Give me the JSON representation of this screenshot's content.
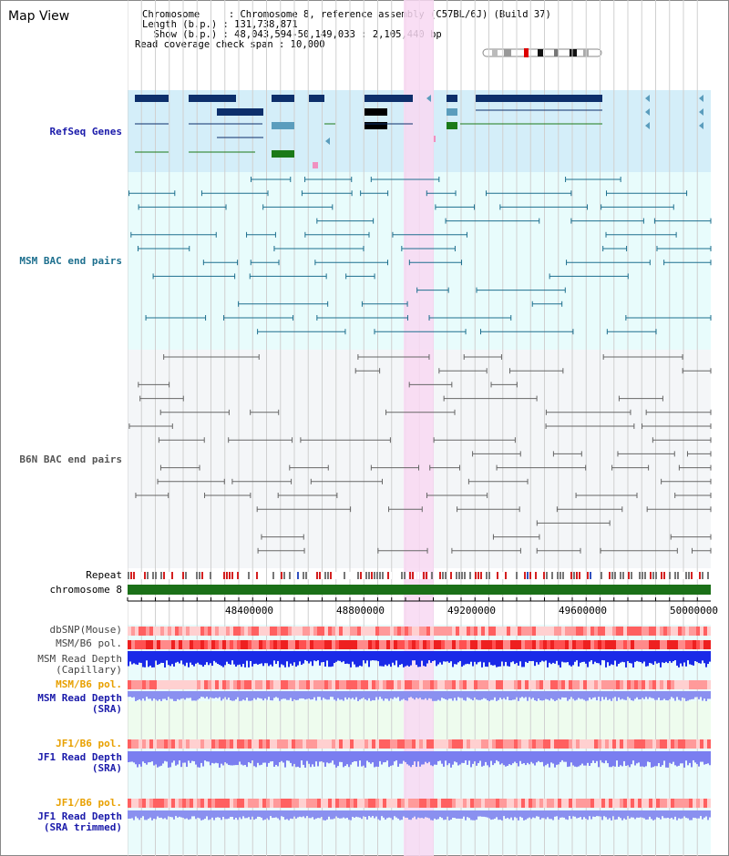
{
  "page": {
    "title": "Map View"
  },
  "info": {
    "chromosome_line": "Chromosome     : Chromosome 8, reference assembly (C57BL/6J) (Build 37)",
    "length_line": "Length (b.p.) : 131,738,871",
    "show_line": "  Show (b.p.) : 48,043,594-50,149,033 : 2,105,440 bp",
    "span_line": "Read coverage check span : 10,000"
  },
  "tracks": {
    "refseq": "RefSeq Genes",
    "msm_bac": "MSM BAC end pairs",
    "b6n_bac": "B6N BAC end pairs",
    "repeat": "Repeat",
    "chromosome": "chromosome 8",
    "dbsnp": "dbSNP(Mouse)",
    "msm_b6_pol": "MSM/B6 pol.",
    "msm_depth_cap_1": "MSM Read Depth",
    "msm_depth_cap_2": "(Capillary)",
    "msm_b6_pol_2": "MSM/B6 pol.",
    "msm_depth_sra_1": "MSM Read Depth",
    "msm_depth_sra_2": "(SRA)",
    "jf1_b6_pol": "JF1/B6 pol.",
    "jf1_depth_1": "JF1 Read Depth",
    "jf1_depth_2": "(SRA)",
    "jf1_b6_pol_2": "JF1/B6 pol.",
    "jf1_depth_trim_1": "JF1 Read Depth",
    "jf1_depth_trim_2": "(SRA trimmed)"
  },
  "ruler": {
    "ticks": [
      "48400000",
      "48800000",
      "49200000",
      "49600000",
      "50000000"
    ]
  },
  "colors": {
    "refseq_bg": "#d4eef9",
    "msm_bg": "#e8fcfc",
    "b6n_bg": "#f4f6f8",
    "highlight": "#f8d8f2",
    "navy": "#0d2f6b",
    "steel": "#5b9dbd",
    "green": "#1b7a18",
    "teal": "#1d6f8e",
    "gray": "#666666",
    "chromosome_bar": "#1b7018",
    "label_blue": "#1a1aaa",
    "label_orange": "#e8a000"
  }
}
